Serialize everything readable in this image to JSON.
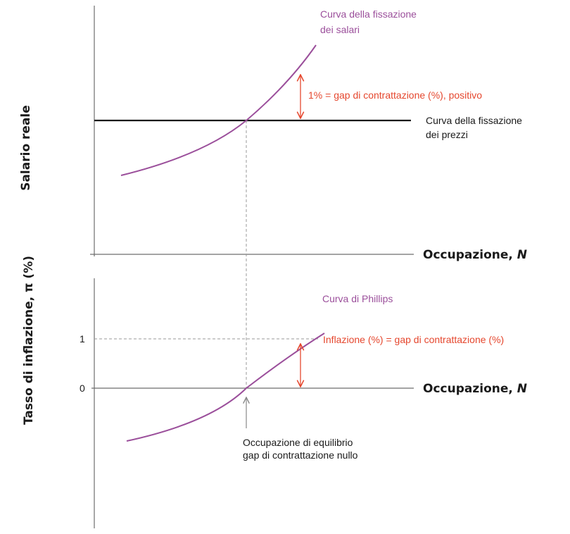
{
  "colors": {
    "wage_curve": "#9b4f9b",
    "price_line": "#1a1a1a",
    "gap": "#e5472e",
    "axis": "#6e6e6e",
    "text": "#1a1a1a"
  },
  "top_panel": {
    "ylabel": "Salario reale",
    "xlabel_main": "Occupazione, ",
    "xlabel_var": "N",
    "wage_curve_label": [
      "Curva della fissazione",
      "dei salari"
    ],
    "price_curve_label": [
      "Curva della fissazione",
      "dei prezzi"
    ],
    "gap_label": "1% = gap di contrattazione (%), positivo"
  },
  "bottom_panel": {
    "ylabel": "Tasso di inflazione, π (%)",
    "xlabel_main": "Occupazione, ",
    "xlabel_var": "N",
    "ticks": [
      "1",
      "0"
    ],
    "phillips_label": "Curva di Phillips",
    "gap_label": "Inflazione (%) = gap di contrattazione (%)",
    "equilibrium_label": [
      "Occupazione di equilibrio",
      "gap di contrattazione nullo"
    ]
  }
}
